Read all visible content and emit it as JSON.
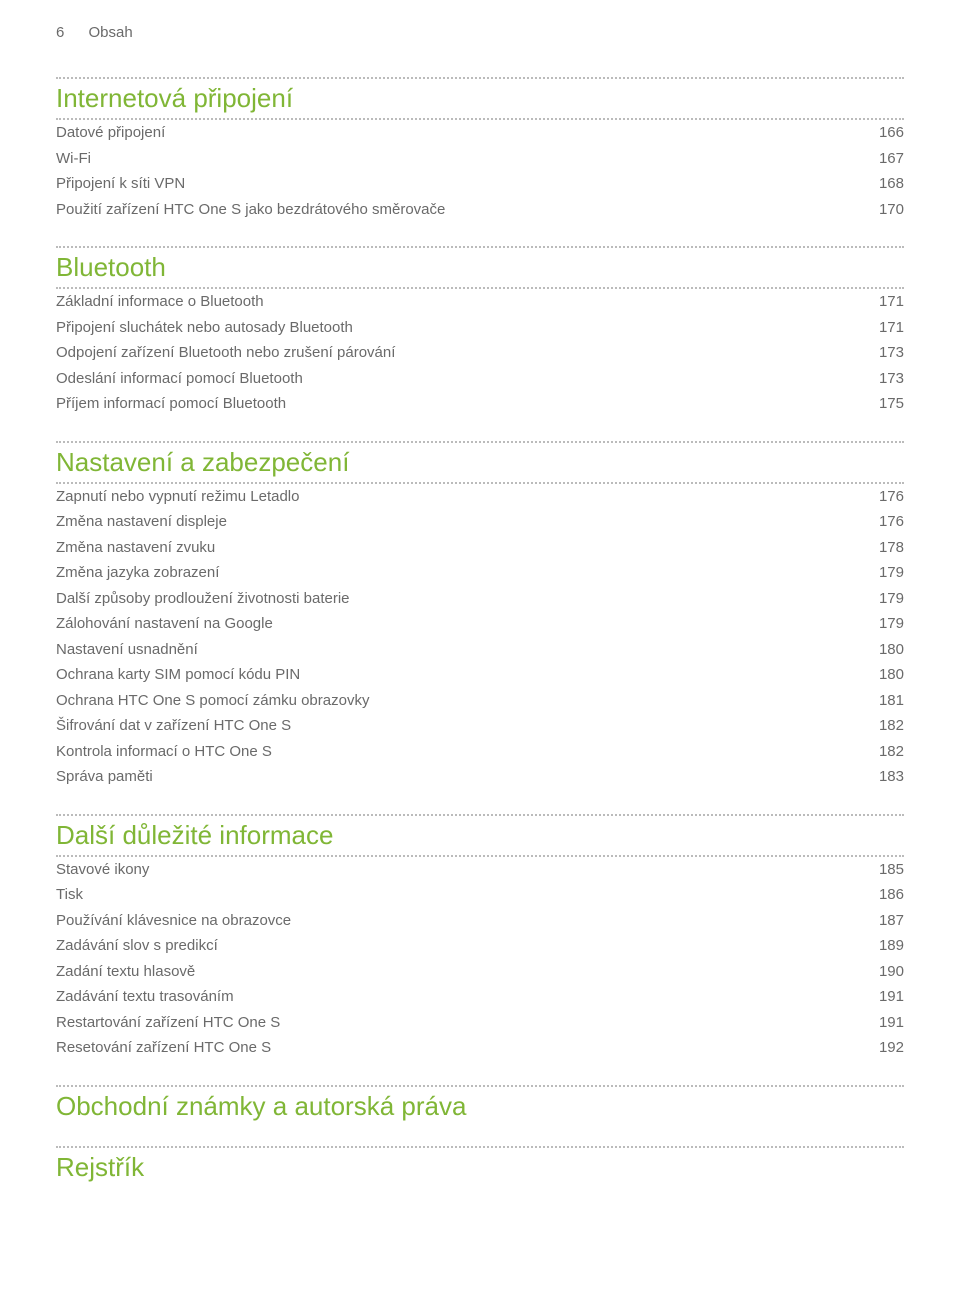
{
  "colors": {
    "heading": "#80b636",
    "text": "#6a6a6a",
    "dotted": "#bbbbbb",
    "background": "#ffffff"
  },
  "typography": {
    "heading_fontsize_pt": 20,
    "body_fontsize_pt": 11,
    "header_fontsize_pt": 11,
    "font_family": "sans-serif"
  },
  "header": {
    "page_number": "6",
    "title": "Obsah"
  },
  "sections": [
    {
      "title": "Internetová připojení",
      "items": [
        {
          "label": "Datové připojení",
          "page": "166"
        },
        {
          "label": "Wi-Fi",
          "page": "167"
        },
        {
          "label": "Připojení k síti VPN",
          "page": "168"
        },
        {
          "label": "Použití zařízení HTC One S jako bezdrátového směrovače",
          "page": "170"
        }
      ]
    },
    {
      "title": "Bluetooth",
      "items": [
        {
          "label": "Základní informace o Bluetooth",
          "page": "171"
        },
        {
          "label": "Připojení sluchátek nebo autosady Bluetooth",
          "page": "171"
        },
        {
          "label": "Odpojení zařízení Bluetooth nebo zrušení párování",
          "page": "173"
        },
        {
          "label": "Odeslání informací pomocí Bluetooth",
          "page": "173"
        },
        {
          "label": "Příjem informací pomocí Bluetooth",
          "page": "175"
        }
      ]
    },
    {
      "title": "Nastavení a zabezpečení",
      "items": [
        {
          "label": "Zapnutí nebo vypnutí režimu Letadlo",
          "page": "176"
        },
        {
          "label": "Změna nastavení displeje",
          "page": "176"
        },
        {
          "label": "Změna nastavení zvuku",
          "page": "178"
        },
        {
          "label": "Změna jazyka zobrazení",
          "page": "179"
        },
        {
          "label": "Další způsoby prodloužení životnosti baterie",
          "page": "179"
        },
        {
          "label": "Zálohování nastavení na Google",
          "page": "179"
        },
        {
          "label": "Nastavení usnadnění",
          "page": "180"
        },
        {
          "label": "Ochrana karty SIM pomocí kódu PIN",
          "page": "180"
        },
        {
          "label": "Ochrana HTC One S pomocí zámku obrazovky",
          "page": "181"
        },
        {
          "label": "Šifrování dat v zařízení HTC One S",
          "page": "182"
        },
        {
          "label": "Kontrola informací o HTC One S",
          "page": "182"
        },
        {
          "label": "Správa paměti",
          "page": "183"
        }
      ]
    },
    {
      "title": "Další důležité informace",
      "items": [
        {
          "label": "Stavové ikony",
          "page": "185"
        },
        {
          "label": "Tisk",
          "page": "186"
        },
        {
          "label": "Používání klávesnice na obrazovce",
          "page": "187"
        },
        {
          "label": "Zadávání slov s predikcí",
          "page": "189"
        },
        {
          "label": "Zadání textu hlasově",
          "page": "190"
        },
        {
          "label": "Zadávání textu trasováním",
          "page": "191"
        },
        {
          "label": "Restartování zařízení HTC One S",
          "page": "191"
        },
        {
          "label": "Resetování zařízení HTC One S",
          "page": "192"
        }
      ]
    },
    {
      "title": "Obchodní známky a autorská práva",
      "items": []
    },
    {
      "title": "Rejstřík",
      "items": []
    }
  ]
}
